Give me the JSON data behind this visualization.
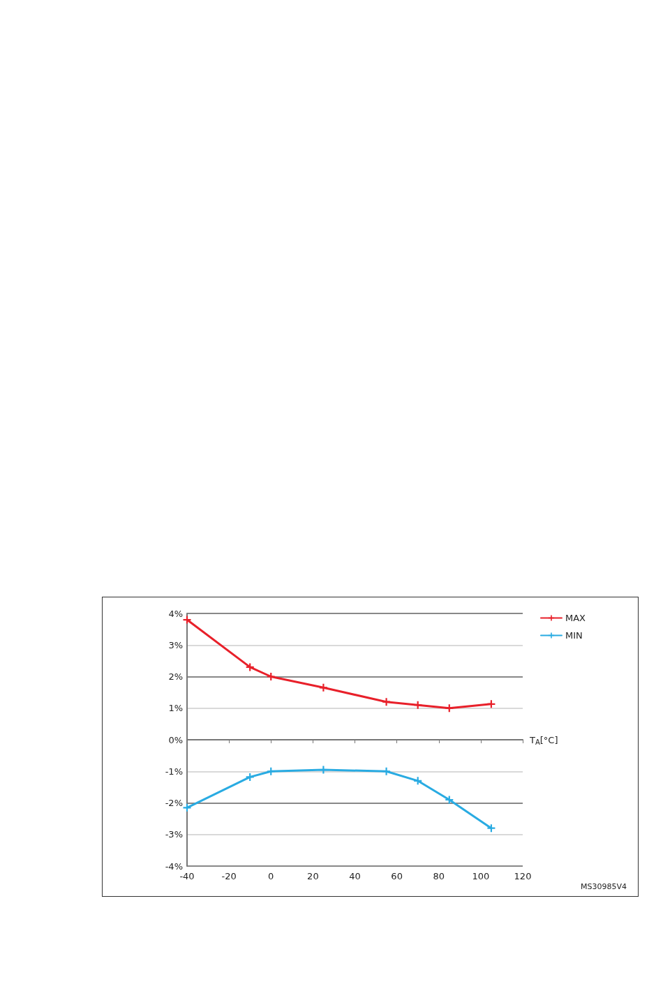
{
  "chart_data": {
    "type": "line",
    "xlabel": "T$_{A}$[°C]",
    "x": [
      -40,
      -10,
      0,
      25,
      55,
      70,
      85,
      105
    ],
    "series": [
      {
        "name": "MAX",
        "color": "#e8202a",
        "values": [
          3.8,
          2.3,
          2.0,
          1.65,
          1.2,
          1.1,
          1.0,
          1.13
        ]
      },
      {
        "name": "MIN",
        "color": "#29abe2",
        "values": [
          -2.15,
          -1.18,
          -1.0,
          -0.95,
          -1.0,
          -1.3,
          -1.9,
          -2.8
        ]
      }
    ],
    "xlim": [
      -40,
      120
    ],
    "xticks": [
      -40,
      -20,
      0,
      20,
      40,
      60,
      80,
      100,
      120
    ],
    "ylim": [
      -4,
      4
    ],
    "yticks": [
      {
        "value": -4,
        "label": "-4%"
      },
      {
        "value": -3,
        "label": "-3%"
      },
      {
        "value": -2,
        "label": "-2%"
      },
      {
        "value": -1,
        "label": "-1%"
      },
      {
        "value": 0,
        "label": "0%"
      },
      {
        "value": 1,
        "label": "1%"
      },
      {
        "value": 2,
        "label": "2%"
      },
      {
        "value": 3,
        "label": "3%"
      },
      {
        "value": 4,
        "label": "4%"
      }
    ],
    "grid": "y",
    "legend": "top right",
    "marker": "cross",
    "line_style": "solid",
    "annotations": [
      "MS30985V4"
    ]
  }
}
